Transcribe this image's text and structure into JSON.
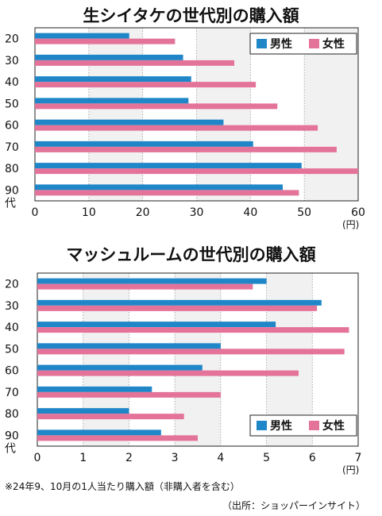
{
  "chart_data": [
    {
      "type": "bar",
      "orientation": "horizontal",
      "title": "生シイタケの世代別の購入額",
      "categories": [
        "20",
        "30",
        "40",
        "50",
        "60",
        "70",
        "80",
        "90"
      ],
      "category_suffix": "代",
      "unit": "(円)",
      "xlim": [
        0,
        60
      ],
      "xticks": [
        0,
        10,
        20,
        30,
        40,
        50,
        60
      ],
      "legend_position": "top-right",
      "series": [
        {
          "name": "男性",
          "color": "#1f86c8",
          "values": [
            17.5,
            27.5,
            29,
            28.5,
            35,
            40.5,
            49.5,
            46
          ]
        },
        {
          "name": "女性",
          "color": "#e4739a",
          "values": [
            26,
            37,
            41,
            45,
            52.5,
            56,
            60,
            49
          ]
        }
      ]
    },
    {
      "type": "bar",
      "orientation": "horizontal",
      "title": "マッシュルームの世代別の購入額",
      "categories": [
        "20",
        "30",
        "40",
        "50",
        "60",
        "70",
        "80",
        "90"
      ],
      "category_suffix": "代",
      "unit": "(円)",
      "xlim": [
        0,
        7
      ],
      "xticks": [
        0,
        1,
        2,
        3,
        4,
        5,
        6,
        7
      ],
      "legend_position": "bottom-right",
      "series": [
        {
          "name": "男性",
          "color": "#1f86c8",
          "values": [
            5.0,
            6.2,
            5.2,
            4.0,
            3.6,
            2.5,
            2.0,
            2.7
          ]
        },
        {
          "name": "女性",
          "color": "#e4739a",
          "values": [
            4.7,
            6.1,
            6.8,
            6.7,
            5.7,
            4.0,
            3.2,
            3.5
          ]
        }
      ]
    }
  ],
  "footnote": "※24年9、10月の1人当たり購入額（非購入者を含む）",
  "source": "（出所：ショッパーインサイト）"
}
